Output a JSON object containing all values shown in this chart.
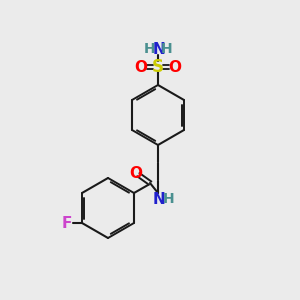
{
  "bg_color": "#ebebeb",
  "bond_color": "#1a1a1a",
  "colors": {
    "N": "#2020cc",
    "O": "#ff0000",
    "S": "#cccc00",
    "F": "#cc44cc",
    "H": "#4a9090",
    "C": "#1a1a1a"
  },
  "figsize": [
    3.0,
    3.0
  ],
  "dpi": 100
}
